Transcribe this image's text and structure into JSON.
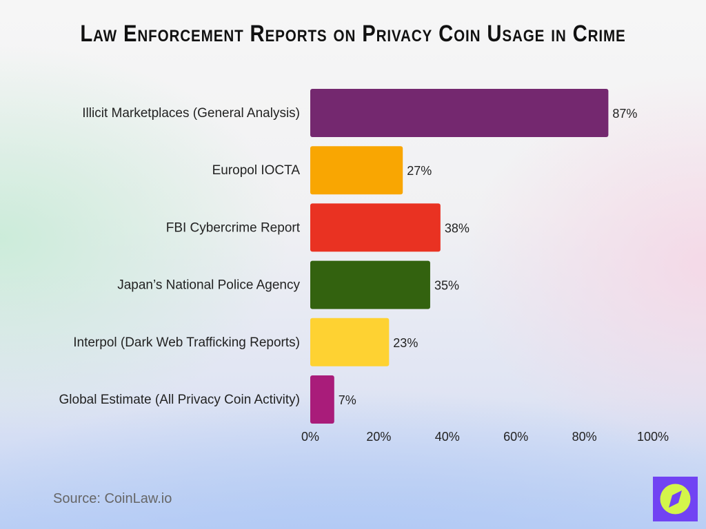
{
  "chart_data": {
    "type": "bar",
    "orientation": "horizontal",
    "title": "Law Enforcement Reports on Privacy Coin Usage in Crime",
    "categories": [
      "Illicit Marketplaces (General Analysis)",
      "Europol IOCTA",
      "FBI Cybercrime Report",
      "Japan’s National Police Agency",
      "Interpol (Dark Web Trafficking Reports)",
      "Global Estimate (All Privacy Coin Activity)"
    ],
    "values": [
      87,
      27,
      38,
      35,
      23,
      7
    ],
    "value_labels": [
      "87%",
      "27%",
      "38%",
      "35%",
      "23%",
      "7%"
    ],
    "colors": [
      "#74286f",
      "#f9a602",
      "#e93222",
      "#33620f",
      "#fed232",
      "#a91c7a"
    ],
    "xlim": [
      0,
      100
    ],
    "xticks": [
      "0%",
      "20%",
      "40%",
      "60%",
      "80%",
      "100%"
    ],
    "xlabel": "",
    "ylabel": "",
    "grid": false,
    "legend": "none"
  },
  "source": "Source: CoinLaw.io",
  "logo": {
    "icon": "compass-icon",
    "bg": "#7143f3",
    "circle": "#d4f54a"
  }
}
